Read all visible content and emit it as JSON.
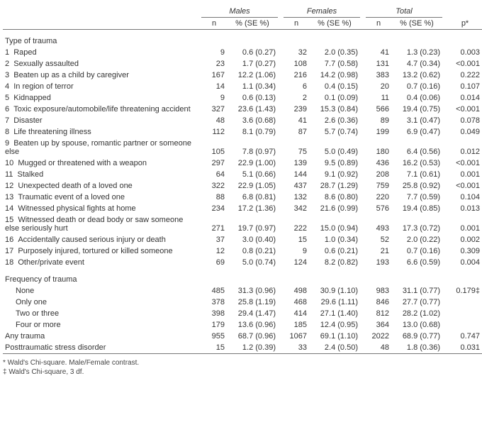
{
  "header": {
    "groups": [
      "Males",
      "Females",
      "Total"
    ],
    "sub_n": "n",
    "sub_pct": "% (SE %)",
    "p_label": "p*"
  },
  "sections": {
    "type_label": "Type of trauma",
    "freq_label": "Frequency of trauma",
    "any_label": "Any trauma",
    "ptsd_label": "Posttraumatic stress disorder"
  },
  "type_rows": [
    {
      "num": "1",
      "label": "Raped",
      "m_n": "9",
      "m_pct": "0.6 (0.27)",
      "f_n": "32",
      "f_pct": "2.0 (0.35)",
      "t_n": "41",
      "t_pct": "1.3 (0.23)",
      "p": "0.003"
    },
    {
      "num": "2",
      "label": "Sexually assaulted",
      "m_n": "23",
      "m_pct": "1.7 (0.27)",
      "f_n": "108",
      "f_pct": "7.7 (0.58)",
      "t_n": "131",
      "t_pct": "4.7 (0.34)",
      "p": "<0.001"
    },
    {
      "num": "3",
      "label": "Beaten up as a child by caregiver",
      "m_n": "167",
      "m_pct": "12.2 (1.06)",
      "f_n": "216",
      "f_pct": "14.2 (0.98)",
      "t_n": "383",
      "t_pct": "13.2 (0.62)",
      "p": "0.222"
    },
    {
      "num": "4",
      "label": "In region of terror",
      "m_n": "14",
      "m_pct": "1.1 (0.34)",
      "f_n": "6",
      "f_pct": "0.4 (0.15)",
      "t_n": "20",
      "t_pct": "0.7 (0.16)",
      "p": "0.107"
    },
    {
      "num": "5",
      "label": "Kidnapped",
      "m_n": "9",
      "m_pct": "0.6 (0.13)",
      "f_n": "2",
      "f_pct": "0.1 (0.09)",
      "t_n": "11",
      "t_pct": "0.4 (0.06)",
      "p": "0.014"
    },
    {
      "num": "6",
      "label": "Toxic exposure/automobile/life threatening accident",
      "m_n": "327",
      "m_pct": "23.6 (1.43)",
      "f_n": "239",
      "f_pct": "15.3 (0.84)",
      "t_n": "566",
      "t_pct": "19.4 (0.75)",
      "p": "<0.001"
    },
    {
      "num": "7",
      "label": "Disaster",
      "m_n": "48",
      "m_pct": "3.6 (0.68)",
      "f_n": "41",
      "f_pct": "2.6 (0.36)",
      "t_n": "89",
      "t_pct": "3.1 (0.47)",
      "p": "0.078"
    },
    {
      "num": "8",
      "label": "Life threatening illness",
      "m_n": "112",
      "m_pct": "8.1 (0.79)",
      "f_n": "87",
      "f_pct": "5.7 (0.74)",
      "t_n": "199",
      "t_pct": "6.9 (0.47)",
      "p": "0.049"
    },
    {
      "num": "9",
      "label": "Beaten up by spouse, romantic partner or someone else",
      "m_n": "105",
      "m_pct": "7.8 (0.97)",
      "f_n": "75",
      "f_pct": "5.0 (0.49)",
      "t_n": "180",
      "t_pct": "6.4 (0.56)",
      "p": "0.012"
    },
    {
      "num": "10",
      "label": "Mugged or threatened with a weapon",
      "m_n": "297",
      "m_pct": "22.9 (1.00)",
      "f_n": "139",
      "f_pct": "9.5 (0.89)",
      "t_n": "436",
      "t_pct": "16.2 (0.53)",
      "p": "<0.001"
    },
    {
      "num": "11",
      "label": "Stalked",
      "m_n": "64",
      "m_pct": "5.1 (0.66)",
      "f_n": "144",
      "f_pct": "9.1 (0.92)",
      "t_n": "208",
      "t_pct": "7.1 (0.61)",
      "p": "0.001"
    },
    {
      "num": "12",
      "label": "Unexpected death of a loved one",
      "m_n": "322",
      "m_pct": "22.9 (1.05)",
      "f_n": "437",
      "f_pct": "28.7 (1.29)",
      "t_n": "759",
      "t_pct": "25.8 (0.92)",
      "p": "<0.001"
    },
    {
      "num": "13",
      "label": "Traumatic event of a loved one",
      "m_n": "88",
      "m_pct": "6.8 (0.81)",
      "f_n": "132",
      "f_pct": "8.6 (0.80)",
      "t_n": "220",
      "t_pct": "7.7 (0.59)",
      "p": "0.104"
    },
    {
      "num": "14",
      "label": "Witnessed physical fights at home",
      "m_n": "234",
      "m_pct": "17.2 (1.36)",
      "f_n": "342",
      "f_pct": "21.6 (0.99)",
      "t_n": "576",
      "t_pct": "19.4 (0.85)",
      "p": "0.013"
    },
    {
      "num": "15",
      "label": "Witnessed death or dead body or saw someone else seriously hurt",
      "m_n": "271",
      "m_pct": "19.7 (0.97)",
      "f_n": "222",
      "f_pct": "15.0 (0.94)",
      "t_n": "493",
      "t_pct": "17.3 (0.72)",
      "p": "0.001"
    },
    {
      "num": "16",
      "label": "Accidentally caused serious injury or death",
      "m_n": "37",
      "m_pct": "3.0 (0.40)",
      "f_n": "15",
      "f_pct": "1.0 (0.34)",
      "t_n": "52",
      "t_pct": "2.0 (0.22)",
      "p": "0.002"
    },
    {
      "num": "17",
      "label": "Purposely injured, tortured or killed someone",
      "m_n": "12",
      "m_pct": "0.8 (0.21)",
      "f_n": "9",
      "f_pct": "0.6 (0.21)",
      "t_n": "21",
      "t_pct": "0.7 (0.16)",
      "p": "0.309"
    },
    {
      "num": "18",
      "label": "Other/private event",
      "m_n": "69",
      "m_pct": "5.0 (0.74)",
      "f_n": "124",
      "f_pct": "8.2 (0.82)",
      "t_n": "193",
      "t_pct": "6.6 (0.59)",
      "p": "0.004"
    }
  ],
  "freq_rows": [
    {
      "label": "None",
      "m_n": "485",
      "m_pct": "31.3 (0.96)",
      "f_n": "498",
      "f_pct": "30.9 (1.10)",
      "t_n": "983",
      "t_pct": "31.1 (0.77)",
      "p": "0.179‡"
    },
    {
      "label": "Only one",
      "m_n": "378",
      "m_pct": "25.8 (1.19)",
      "f_n": "468",
      "f_pct": "29.6 (1.11)",
      "t_n": "846",
      "t_pct": "27.7 (0.77)",
      "p": ""
    },
    {
      "label": "Two or three",
      "m_n": "398",
      "m_pct": "29.4 (1.47)",
      "f_n": "414",
      "f_pct": "27.1 (1.40)",
      "t_n": "812",
      "t_pct": "28.2 (1.02)",
      "p": ""
    },
    {
      "label": "Four or more",
      "m_n": "179",
      "m_pct": "13.6 (0.96)",
      "f_n": "185",
      "f_pct": "12.4 (0.95)",
      "t_n": "364",
      "t_pct": "13.0 (0.68)",
      "p": ""
    }
  ],
  "any_row": {
    "m_n": "955",
    "m_pct": "68.7 (0.96)",
    "f_n": "1067",
    "f_pct": "69.1 (1.10)",
    "t_n": "2022",
    "t_pct": "68.9 (0.77)",
    "p": "0.747"
  },
  "ptsd_row": {
    "m_n": "15",
    "m_pct": "1.2 (0.39)",
    "f_n": "33",
    "f_pct": "2.4 (0.50)",
    "t_n": "48",
    "t_pct": "1.8 (0.36)",
    "p": "0.031"
  },
  "footnotes": [
    "* Wald's Chi-square. Male/Female contrast.",
    "‡ Wald's Chi-square, 3 df."
  ]
}
